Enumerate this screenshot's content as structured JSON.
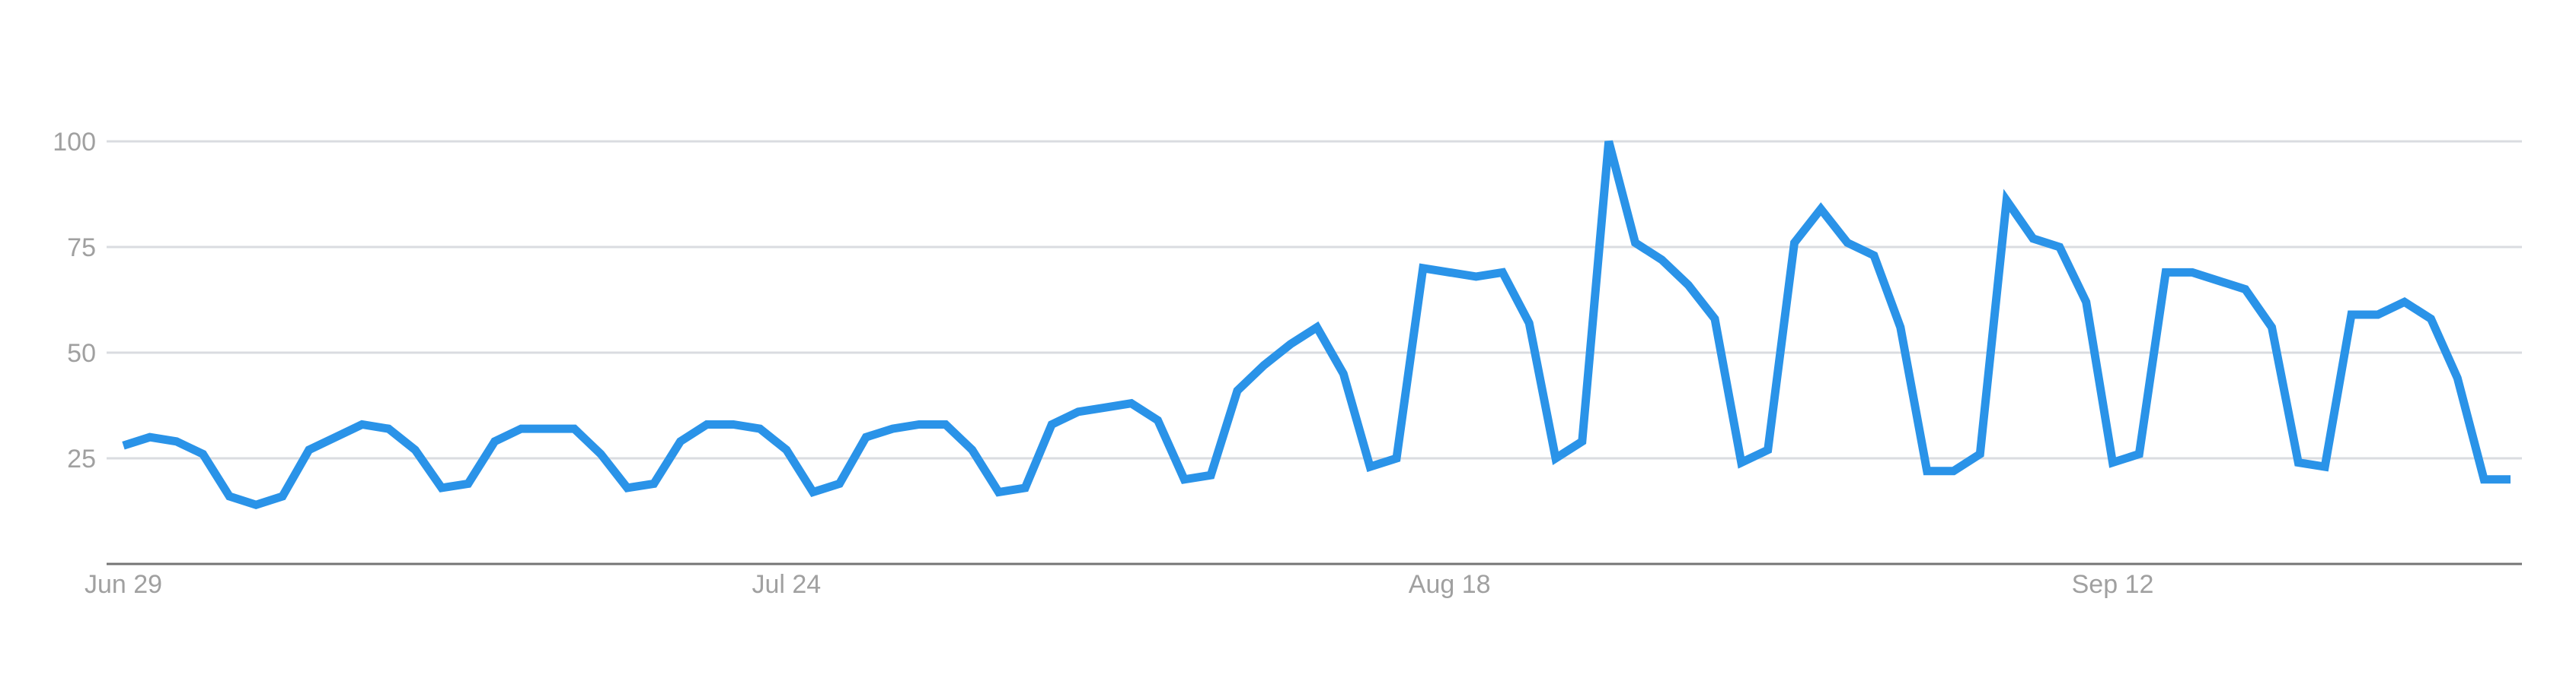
{
  "chart_data": {
    "type": "line",
    "title": "",
    "xlabel": "",
    "ylabel": "",
    "ylim": [
      0,
      100
    ],
    "y_ticks": [
      25,
      50,
      75,
      100
    ],
    "y_tick_labels": [
      "25",
      "50",
      "75",
      "100"
    ],
    "x_tick_labels": [
      {
        "label": "Jun 29",
        "index": 0
      },
      {
        "label": "Jul 24",
        "index": 25
      },
      {
        "label": "Aug 18",
        "index": 50
      },
      {
        "label": "Sep 12",
        "index": 75
      }
    ],
    "grid": true,
    "legend": "none",
    "series": [
      {
        "color": "#2a93e8",
        "values": [
          28,
          30,
          29,
          26,
          16,
          14,
          16,
          27,
          30,
          33,
          32,
          27,
          18,
          19,
          29,
          32,
          32,
          32,
          26,
          18,
          19,
          29,
          33,
          33,
          32,
          27,
          17,
          19,
          30,
          32,
          33,
          33,
          27,
          17,
          18,
          33,
          36,
          37,
          38,
          34,
          20,
          21,
          41,
          47,
          52,
          56,
          45,
          23,
          25,
          70,
          69,
          68,
          69,
          57,
          25,
          29,
          100,
          76,
          72,
          66,
          58,
          24,
          27,
          76,
          84,
          76,
          73,
          56,
          22,
          22,
          26,
          86,
          77,
          75,
          62,
          24,
          26,
          69,
          69,
          67,
          65,
          56,
          24,
          23,
          59,
          59,
          62,
          58,
          44,
          20,
          20
        ]
      }
    ]
  }
}
